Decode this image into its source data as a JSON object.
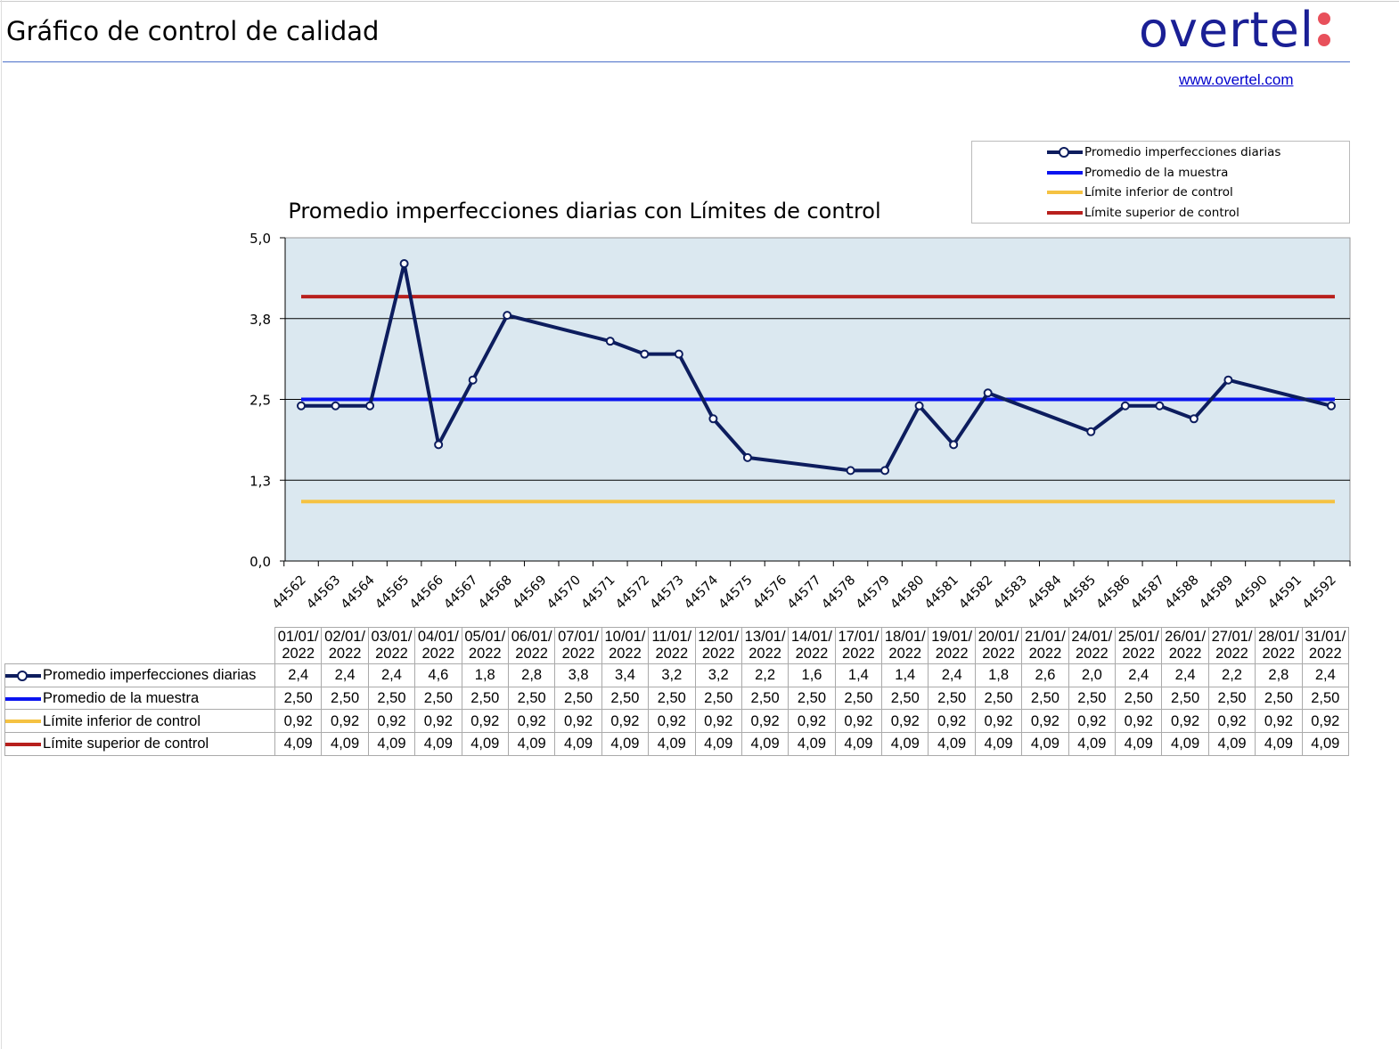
{
  "header": {
    "title": "Gráfico de control de calidad",
    "logo_text": "overtel",
    "link": "www.overtel.com"
  },
  "colors": {
    "series": "#0d1d5e",
    "mean": "#0a14f0",
    "lcl": "#f5c242",
    "ucl": "#b8201d",
    "plot_bg": "#dbe8f0",
    "logo": "#1a1f95",
    "logo_dots": "#e8505b"
  },
  "chart_data": {
    "type": "line",
    "title": "Promedio imperfecciones diarias con Límites de control",
    "xlabel": "",
    "ylabel": "",
    "ylim": [
      0,
      5
    ],
    "yticks": [
      "0,0",
      "1,3",
      "2,5",
      "3,8",
      "5,0"
    ],
    "ytick_values": [
      0,
      1.25,
      2.5,
      3.75,
      5
    ],
    "grid": true,
    "legend_position": "top-right",
    "x_ticks": [
      44562,
      44563,
      44564,
      44565,
      44566,
      44567,
      44568,
      44569,
      44570,
      44571,
      44572,
      44573,
      44574,
      44575,
      44576,
      44577,
      44578,
      44579,
      44580,
      44581,
      44582,
      44583,
      44584,
      44585,
      44586,
      44587,
      44588,
      44589,
      44590,
      44591,
      44592
    ],
    "x": [
      44562,
      44563,
      44564,
      44565,
      44566,
      44567,
      44568,
      44571,
      44572,
      44573,
      44574,
      44575,
      44578,
      44579,
      44580,
      44581,
      44582,
      44585,
      44586,
      44587,
      44588,
      44589,
      44592
    ],
    "dates": [
      "01/01/2022",
      "02/01/2022",
      "03/01/2022",
      "04/01/2022",
      "05/01/2022",
      "06/01/2022",
      "07/01/2022",
      "10/01/2022",
      "11/01/2022",
      "12/01/2022",
      "13/01/2022",
      "14/01/2022",
      "17/01/2022",
      "18/01/2022",
      "19/01/2022",
      "20/01/2022",
      "21/01/2022",
      "24/01/2022",
      "25/01/2022",
      "26/01/2022",
      "27/01/2022",
      "28/01/2022",
      "31/01/2022"
    ],
    "series": [
      {
        "name": "Promedio imperfecciones diarias",
        "values": [
          2.4,
          2.4,
          2.4,
          4.6,
          1.8,
          2.8,
          3.8,
          3.4,
          3.2,
          3.2,
          2.2,
          1.6,
          1.4,
          1.4,
          2.4,
          1.8,
          2.6,
          2.0,
          2.4,
          2.4,
          2.2,
          2.8,
          2.4
        ],
        "display": [
          "2,4",
          "2,4",
          "2,4",
          "4,6",
          "1,8",
          "2,8",
          "3,8",
          "3,4",
          "3,2",
          "3,2",
          "2,2",
          "1,6",
          "1,4",
          "1,4",
          "2,4",
          "1,8",
          "2,6",
          "2,0",
          "2,4",
          "2,4",
          "2,2",
          "2,8",
          "2,4"
        ]
      },
      {
        "name": "Promedio de la muestra",
        "value": 2.5,
        "display": "2,50"
      },
      {
        "name": "Límite inferior de control",
        "value": 0.92,
        "display": "0,92"
      },
      {
        "name": "Límite superior de control",
        "value": 4.09,
        "display": "4,09"
      }
    ]
  }
}
